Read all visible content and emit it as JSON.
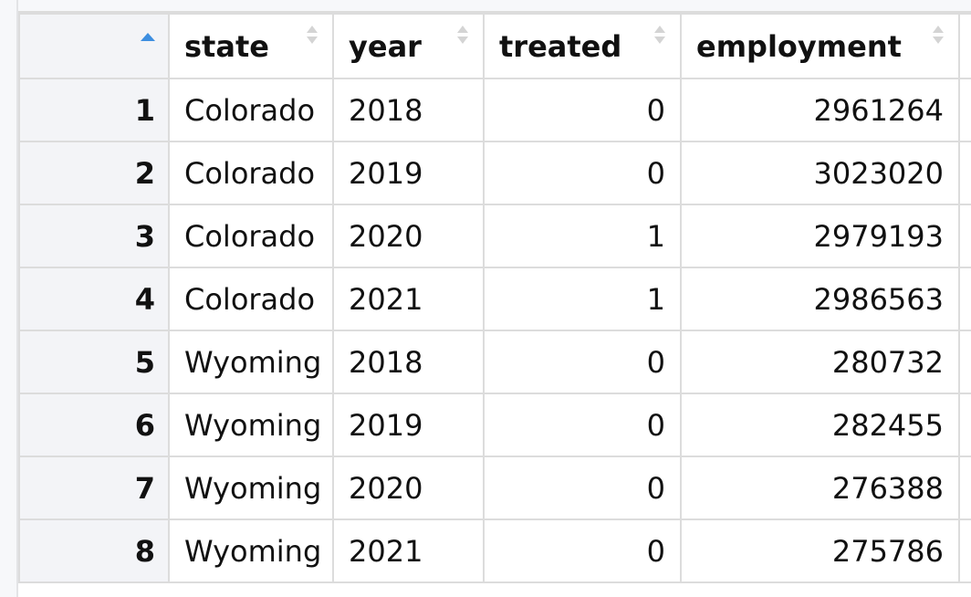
{
  "columns": {
    "state": "state",
    "year": "year",
    "treated": "treated",
    "employment": "employment"
  },
  "rows": [
    {
      "index": "1",
      "state": "Colorado",
      "year": "2018",
      "treated": "0",
      "employment": "2961264"
    },
    {
      "index": "2",
      "state": "Colorado",
      "year": "2019",
      "treated": "0",
      "employment": "3023020"
    },
    {
      "index": "3",
      "state": "Colorado",
      "year": "2020",
      "treated": "1",
      "employment": "2979193"
    },
    {
      "index": "4",
      "state": "Colorado",
      "year": "2021",
      "treated": "1",
      "employment": "2986563"
    },
    {
      "index": "5",
      "state": "Wyoming",
      "year": "2018",
      "treated": "0",
      "employment": "280732"
    },
    {
      "index": "6",
      "state": "Wyoming",
      "year": "2019",
      "treated": "0",
      "employment": "282455"
    },
    {
      "index": "7",
      "state": "Wyoming",
      "year": "2020",
      "treated": "0",
      "employment": "276388"
    },
    {
      "index": "8",
      "state": "Wyoming",
      "year": "2021",
      "treated": "0",
      "employment": "275786"
    }
  ],
  "colors": {
    "sort_active": "#3d8ee0",
    "sort_inactive": "#d4d4d4",
    "grid_line": "#dcdcdc",
    "index_background": "#f3f4f7"
  },
  "icons": {
    "sort_active": "sort-ascending-icon",
    "sort_inactive": "sort-icon"
  }
}
